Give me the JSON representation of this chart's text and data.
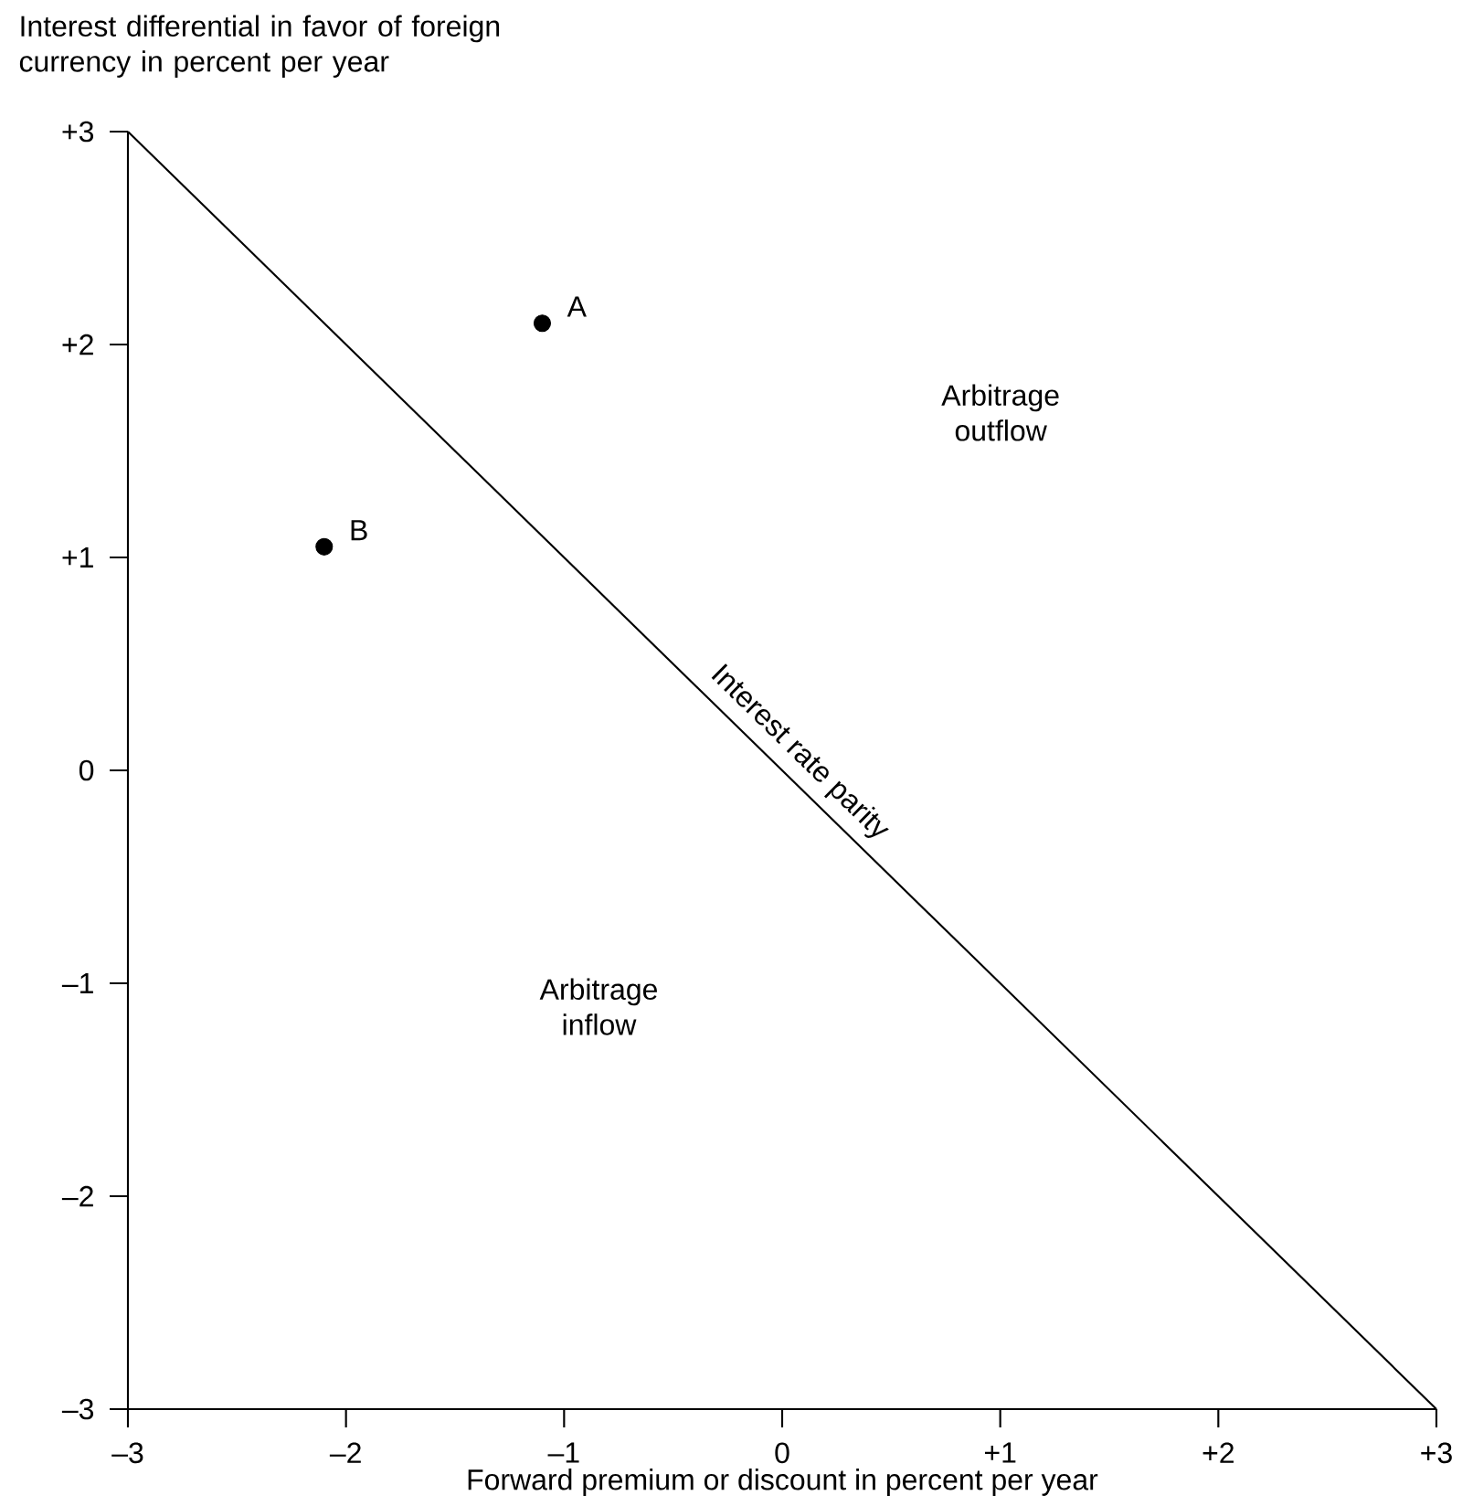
{
  "chart_data": {
    "type": "line",
    "xlabel": "Forward premium or discount in percent per year",
    "ylabel": "Interest differential in favor of foreign currency in percent per year",
    "xlim": [
      -3,
      3
    ],
    "ylim": [
      -3,
      3
    ],
    "xticks": [
      {
        "value": -3,
        "label": "–3"
      },
      {
        "value": -2,
        "label": "–2"
      },
      {
        "value": -1,
        "label": "–1"
      },
      0,
      {
        "value": 1,
        "label": "+1"
      },
      {
        "value": 2,
        "label": "+2"
      },
      {
        "value": 3,
        "label": "+3"
      }
    ],
    "yticks": [
      {
        "value": -3,
        "label": "–3"
      },
      {
        "value": -2,
        "label": "–2"
      },
      {
        "value": -1,
        "label": "–1"
      },
      0,
      {
        "value": 1,
        "label": "+1"
      },
      {
        "value": 2,
        "label": "+2"
      },
      {
        "value": 3,
        "label": "+3"
      }
    ],
    "series": [
      {
        "name": "Interest rate parity",
        "color": "#000000",
        "x": [
          -3,
          3
        ],
        "values": [
          3,
          -3
        ]
      },
      {
        "type": "scatter",
        "color": "#000000",
        "x": [
          -1.1,
          -2.1
        ],
        "values": [
          2.1,
          1.05
        ]
      }
    ],
    "annotations": [
      {
        "text": "A",
        "x": -1.1,
        "y": 2.1
      },
      {
        "text": "B",
        "x": -2.1,
        "y": 1.05
      },
      "Arbitrage outflow",
      "Arbitrage inflow"
    ]
  }
}
